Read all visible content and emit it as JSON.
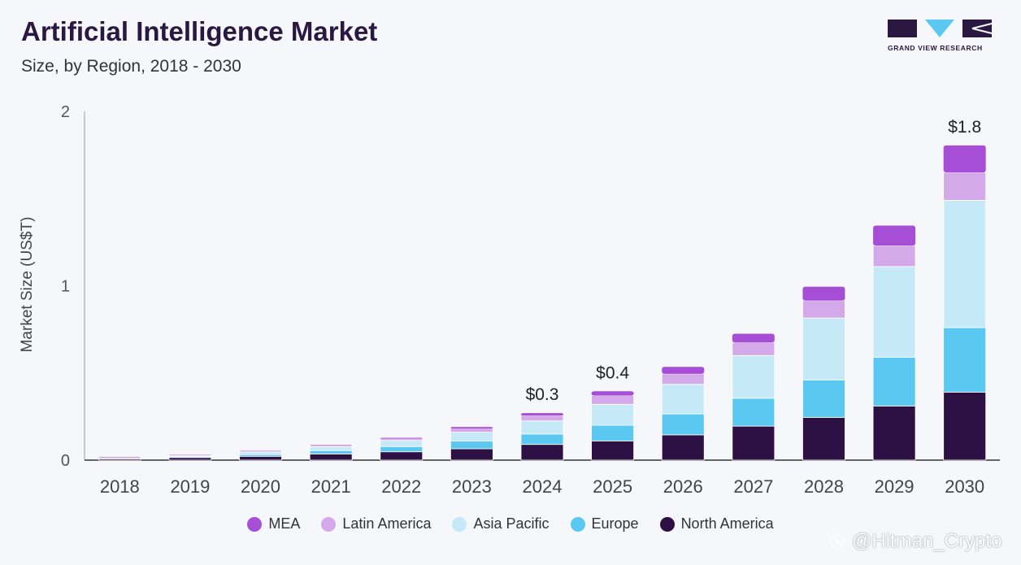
{
  "title": "Artificial Intelligence Market",
  "subtitle": "Size, by Region, 2018 - 2030",
  "logo_text": "GRAND VIEW RESEARCH",
  "watermark": "@Hitman_Crypto",
  "colors": {
    "MEA": "#a64fd6",
    "Latin America": "#d4a9ea",
    "Asia Pacific": "#c6e9f8",
    "Europe": "#5bc8f2",
    "North America": "#2d1144"
  },
  "chart_data": {
    "type": "bar",
    "stacked": true,
    "title": "Artificial Intelligence Market",
    "subtitle": "Size, by Region, 2018 - 2030",
    "xlabel": "",
    "ylabel": "Market Size (US$T)",
    "ylim": [
      0,
      2
    ],
    "yticks": [
      "0",
      "1",
      "2"
    ],
    "grid": false,
    "legend_position": "bottom",
    "categories": [
      "2018",
      "2019",
      "2020",
      "2021",
      "2022",
      "2023",
      "2024",
      "2025",
      "2026",
      "2027",
      "2028",
      "2029",
      "2030"
    ],
    "series": [
      {
        "name": "North America",
        "values": [
          0.008,
          0.015,
          0.022,
          0.035,
          0.048,
          0.065,
          0.09,
          0.11,
          0.145,
          0.195,
          0.245,
          0.31,
          0.39
        ]
      },
      {
        "name": "Europe",
        "values": [
          0.003,
          0.005,
          0.01,
          0.02,
          0.03,
          0.045,
          0.06,
          0.09,
          0.12,
          0.16,
          0.215,
          0.28,
          0.37
        ]
      },
      {
        "name": "Asia Pacific",
        "values": [
          0.004,
          0.007,
          0.015,
          0.022,
          0.035,
          0.05,
          0.075,
          0.12,
          0.17,
          0.245,
          0.355,
          0.52,
          0.73
        ]
      },
      {
        "name": "Latin America",
        "values": [
          0.001,
          0.002,
          0.004,
          0.006,
          0.01,
          0.02,
          0.03,
          0.05,
          0.06,
          0.075,
          0.1,
          0.12,
          0.16
        ]
      },
      {
        "name": "MEA",
        "values": [
          0.001,
          0.001,
          0.002,
          0.003,
          0.005,
          0.01,
          0.015,
          0.025,
          0.04,
          0.05,
          0.08,
          0.115,
          0.155
        ]
      }
    ],
    "data_labels": [
      {
        "category": "2024",
        "text": "$0.3"
      },
      {
        "category": "2025",
        "text": "$0.4"
      },
      {
        "category": "2030",
        "text": "$1.8"
      }
    ]
  }
}
